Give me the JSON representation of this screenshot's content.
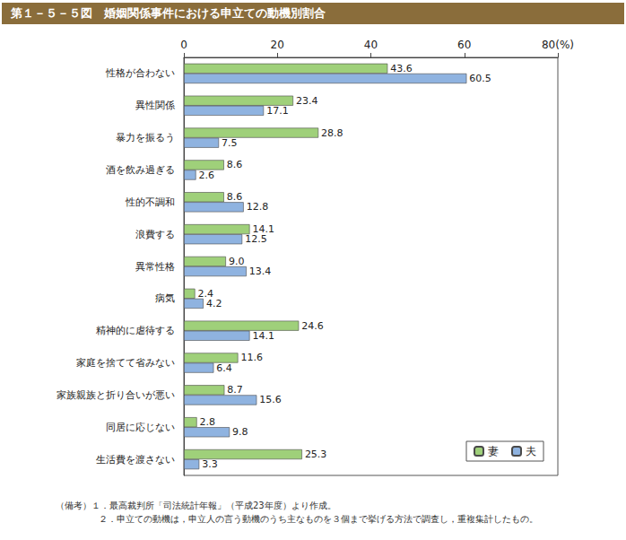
{
  "chart_data": {
    "type": "bar",
    "title": "第１－５－５図　婚姻関係事件における申立ての動機別割合",
    "orientation": "horizontal",
    "categories": [
      "性格が合わない",
      "異性関係",
      "暴力を振るう",
      "酒を飲み過ぎる",
      "性的不調和",
      "浪費する",
      "異常性格",
      "病気",
      "精神的に虐待する",
      "家庭を捨てて省みない",
      "家族親族と折り合いが悪い",
      "同居に応じない",
      "生活費を渡さない"
    ],
    "series": [
      {
        "name": "妻",
        "color": "#9fd07a",
        "values": [
          43.6,
          23.4,
          28.8,
          8.6,
          8.6,
          14.1,
          9.0,
          2.4,
          24.6,
          11.6,
          8.7,
          2.8,
          25.3
        ],
        "value_labels": [
          "43.6",
          "23.4",
          "28.8",
          "8.6",
          "8.6",
          "14.1",
          "9.0",
          "2.4",
          "24.6",
          "11.6",
          "8.7",
          "2.8",
          "25.3"
        ]
      },
      {
        "name": "夫",
        "color": "#8fb3e0",
        "values": [
          60.5,
          17.1,
          7.5,
          2.6,
          12.8,
          12.5,
          13.4,
          4.2,
          14.1,
          6.4,
          15.6,
          9.8,
          3.3
        ],
        "value_labels": [
          "60.5",
          "17.1",
          "7.5",
          "2.6",
          "12.8",
          "12.5",
          "13.4",
          "4.2",
          "14.1",
          "6.4",
          "15.6",
          "9.8",
          "3.3"
        ]
      }
    ],
    "xlim": [
      0,
      80
    ],
    "xticks": [
      0,
      20,
      40,
      60,
      {
        "value": 80,
        "label": "80(%)"
      }
    ],
    "data_labels": true,
    "legend": "lower right",
    "grid": false,
    "notes": [
      "（備考）１．最高裁判所「司法統計年報」（平成23年度）より作成。",
      "２．申立ての動機は，申立人の言う動機のうち主なものを３個まで挙げる方法で調査し，重複集計したもの。"
    ]
  }
}
